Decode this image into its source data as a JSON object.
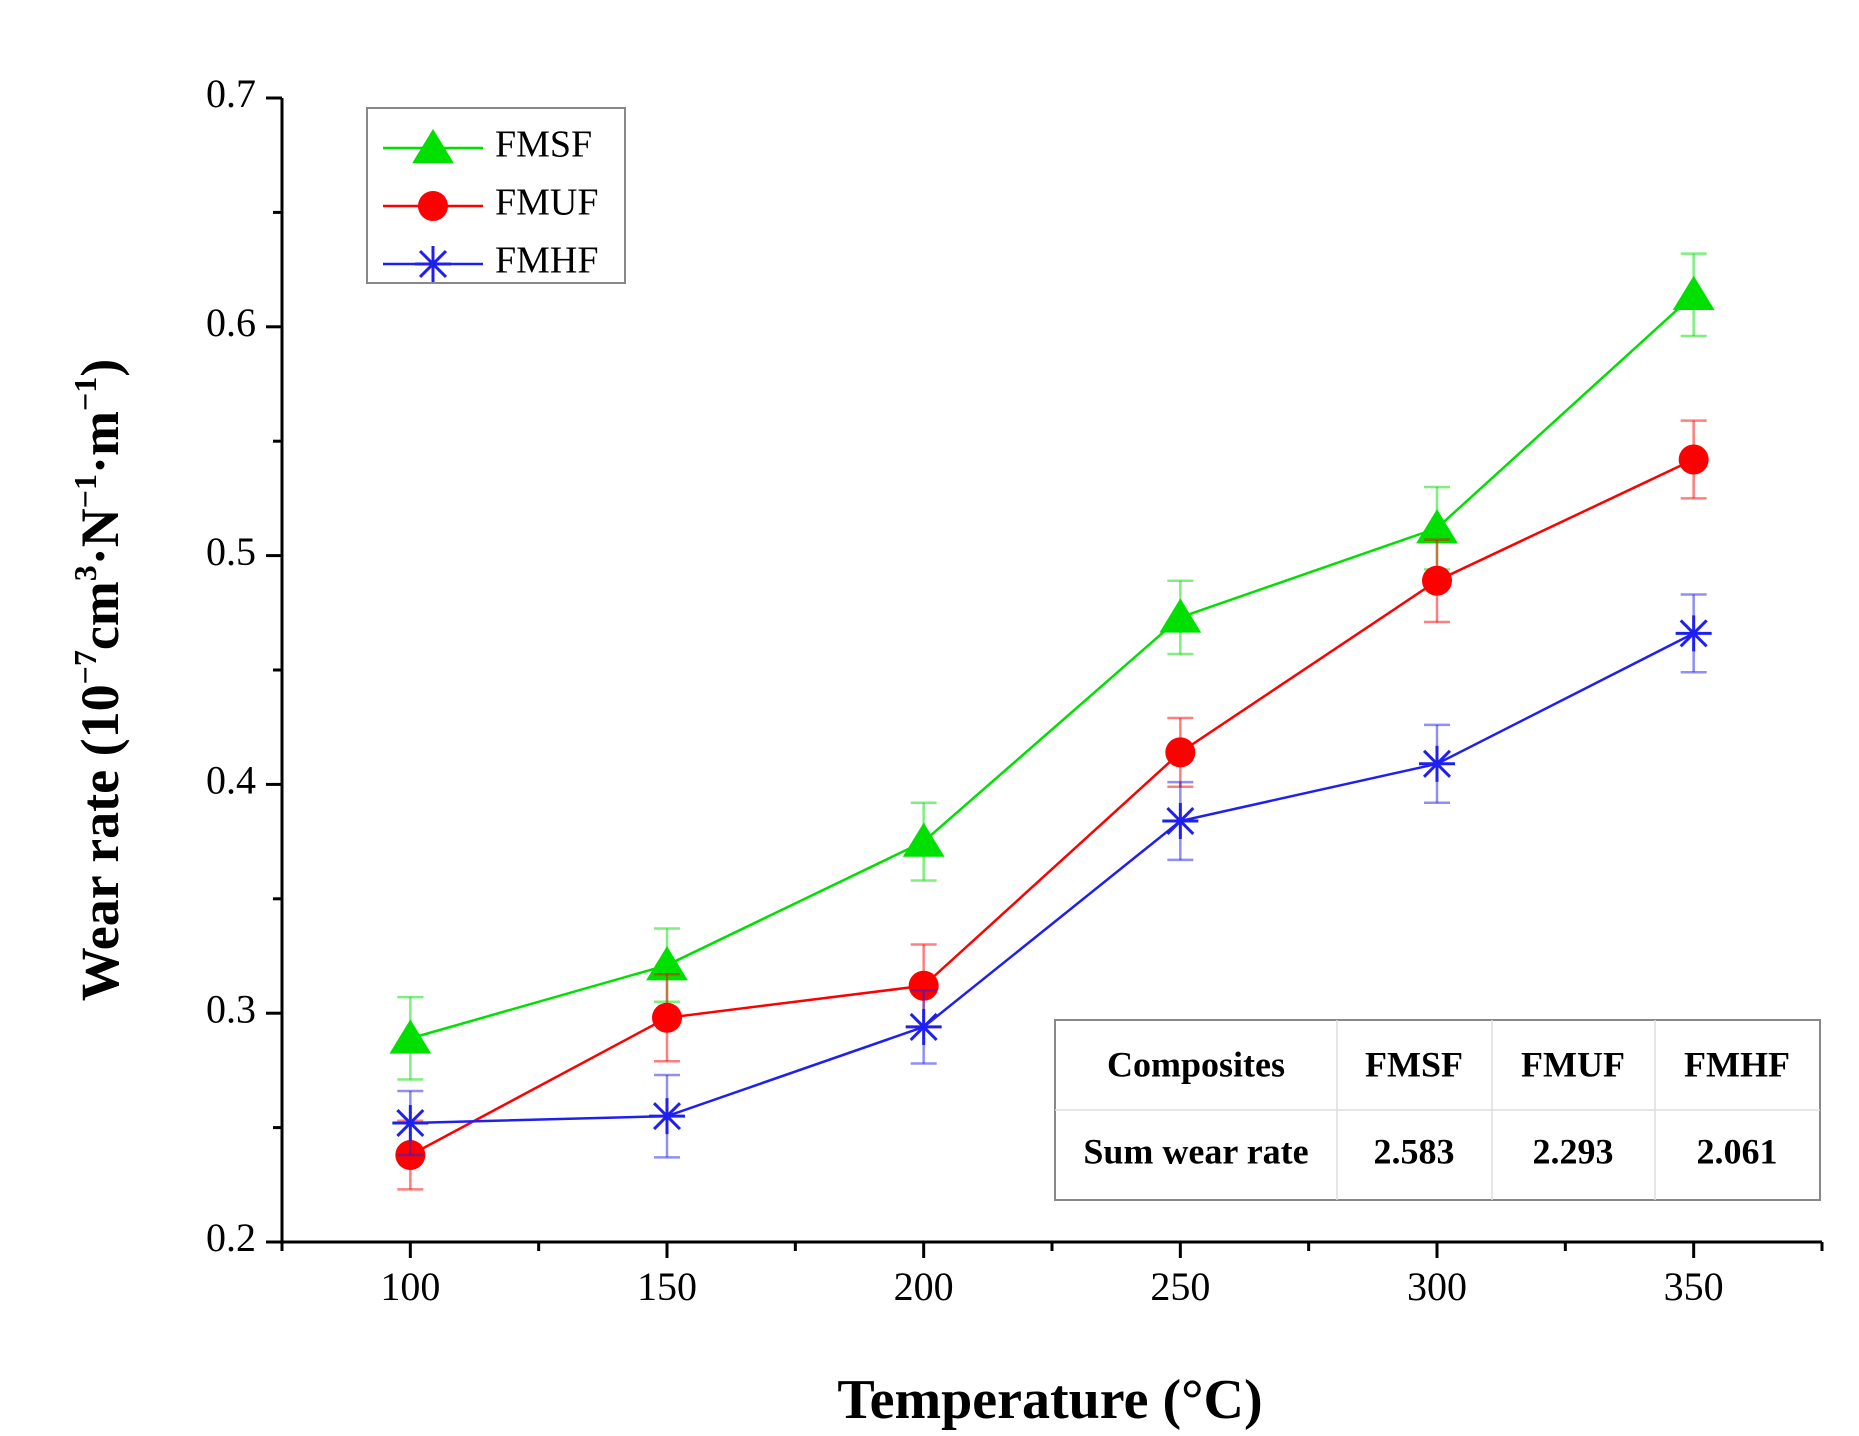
{
  "chart_data": {
    "type": "line",
    "title": "",
    "xlabel": "Temperature (°C)",
    "ylabel_parts": {
      "prefix": "Wear rate (10",
      "exp1": "−7",
      "mid1": "cm",
      "exp2": "3",
      "mid2": "·N",
      "exp3": "−1",
      "mid3": "·m",
      "exp4": "−1",
      "suffix": ")"
    },
    "x": [
      100,
      150,
      200,
      250,
      300,
      350
    ],
    "xlim": [
      75,
      375
    ],
    "ylim": [
      0.2,
      0.7
    ],
    "x_ticks": [
      "100",
      "150",
      "200",
      "250",
      "300",
      "350"
    ],
    "y_ticks": [
      "0.2",
      "0.3",
      "0.4",
      "0.5",
      "0.6",
      "0.7"
    ],
    "legend_position": "top-left",
    "series": [
      {
        "name": "FMSF",
        "color": "#00e000",
        "marker": "triangle",
        "values": [
          0.289,
          0.321,
          0.375,
          0.473,
          0.512,
          0.614
        ],
        "errors": [
          0.018,
          0.016,
          0.017,
          0.016,
          0.018,
          0.018
        ]
      },
      {
        "name": "FMUF",
        "color": "#ff0000",
        "marker": "circle",
        "values": [
          0.238,
          0.298,
          0.312,
          0.414,
          0.489,
          0.542
        ],
        "errors": [
          0.015,
          0.019,
          0.018,
          0.015,
          0.018,
          0.017
        ]
      },
      {
        "name": "FMHF",
        "color": "#2020ee",
        "marker": "asterisk",
        "values": [
          0.252,
          0.255,
          0.294,
          0.384,
          0.409,
          0.466
        ],
        "errors": [
          0.014,
          0.018,
          0.016,
          0.017,
          0.017,
          0.017
        ]
      }
    ],
    "inset_table": {
      "header": [
        "Composites",
        "FMSF",
        "FMUF",
        "FMHF"
      ],
      "row": [
        "Sum wear rate",
        "2.583",
        "2.293",
        "2.061"
      ]
    }
  }
}
